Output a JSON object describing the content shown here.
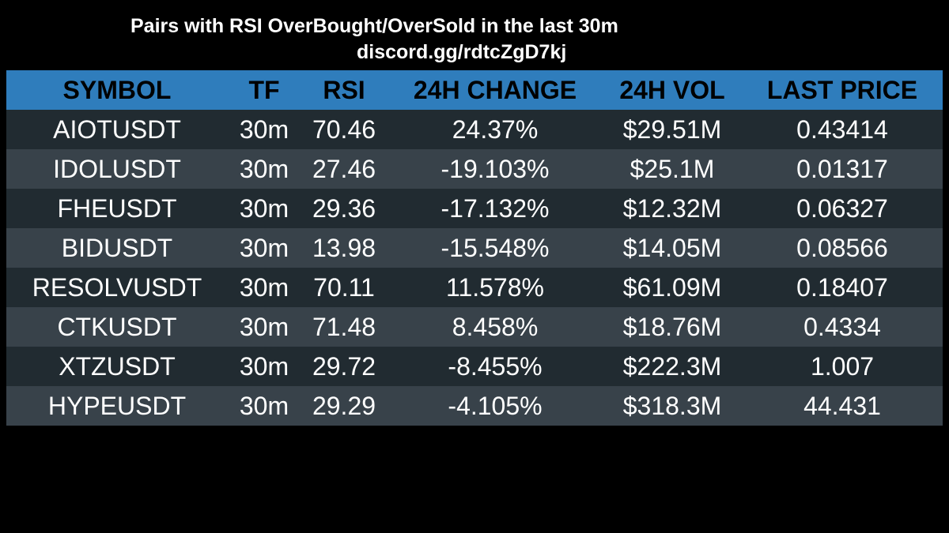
{
  "header": {
    "title": "Pairs with RSI OverBought/OverSold in the last 30m",
    "link": "discord.gg/rdtcZgD7kj"
  },
  "table": {
    "columns": [
      "SYMBOL",
      "TF",
      "RSI",
      "24H CHANGE",
      "24H VOL",
      "LAST PRICE"
    ],
    "rows": [
      [
        "AIOTUSDT",
        "30m",
        "70.46",
        "24.37%",
        "$29.51M",
        "0.43414"
      ],
      [
        "IDOLUSDT",
        "30m",
        "27.46",
        "-19.103%",
        "$25.1M",
        "0.01317"
      ],
      [
        "FHEUSDT",
        "30m",
        "29.36",
        "-17.132%",
        "$12.32M",
        "0.06327"
      ],
      [
        "BIDUSDT",
        "30m",
        "13.98",
        "-15.548%",
        "$14.05M",
        "0.08566"
      ],
      [
        "RESOLVUSDT",
        "30m",
        "70.11",
        "11.578%",
        "$61.09M",
        "0.18407"
      ],
      [
        "CTKUSDT",
        "30m",
        "71.48",
        "8.458%",
        "$18.76M",
        "0.4334"
      ],
      [
        "XTZUSDT",
        "30m",
        "29.72",
        "-8.455%",
        "$222.3M",
        "1.007"
      ],
      [
        "HYPEUSDT",
        "30m",
        "29.29",
        "-4.105%",
        "$318.3M",
        "44.431"
      ]
    ]
  },
  "colors": {
    "background": "#000000",
    "header_bg": "#2f7dbc",
    "row_dark": "#212b31",
    "row_light": "#38424a"
  }
}
